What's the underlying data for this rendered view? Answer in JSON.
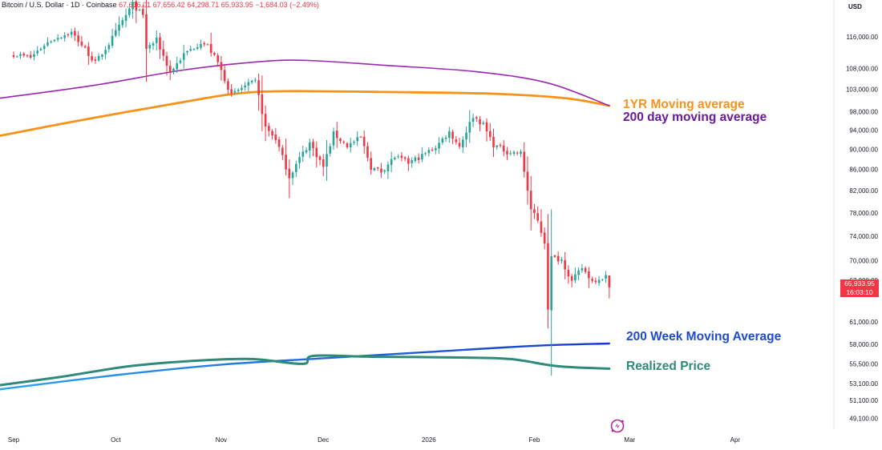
{
  "header": {
    "symbol": "Bitcoin / U.S. Dollar · 1D · Coinbase",
    "open": "67,616.01",
    "high": "67,656.42",
    "low": "64,298.71",
    "close": "65,933.95",
    "change": "−1,684.03 (−2.49%)"
  },
  "currency_label": "USD",
  "last_price": {
    "value": "65,933.95",
    "countdown": "16:03:10"
  },
  "annotations": {
    "ma_1yr": "1YR Moving average",
    "ma_200d": "200 day moving average",
    "ma_200w": "200 Week Moving Average",
    "realized": "Realized Price"
  },
  "colors": {
    "up": "#26a69a",
    "down": "#f23645",
    "ma_1yr": "#f7931a",
    "ma_200d": "#9c27b0",
    "ma_200w": "#1e4bd2",
    "realized": "#2e8b7a",
    "price_tag": "#f23645"
  },
  "icons": {
    "logo": "tradingview-logo-icon"
  },
  "chart_data": {
    "type": "candlestick",
    "y_axis": {
      "scale": "log",
      "ticks": [
        116000,
        108000,
        103000,
        98000,
        94000,
        90000,
        86000,
        82000,
        78000,
        74000,
        70000,
        67000,
        61000,
        58000,
        55500,
        53100,
        51100,
        49100
      ],
      "tick_labels": [
        "116,000.00",
        "108,000.00",
        "103,000.00",
        "98,000.00",
        "94,000.00",
        "90,000.00",
        "86,000.00",
        "82,000.00",
        "78,000.00",
        "74,000.00",
        "70,000.00",
        "67,000.00",
        "61,000.00",
        "58,000.00",
        "55,500.00",
        "53,100.00",
        "51,100.00",
        "49,100.00"
      ],
      "range": [
        47900,
        126000
      ]
    },
    "x_axis": {
      "tick_labels": [
        "Sep",
        "Oct",
        "Nov",
        "Dec",
        "2026",
        "Feb",
        "Mar",
        "Apr"
      ],
      "tick_dates": [
        "2025-09-01",
        "2025-10-01",
        "2025-11-01",
        "2025-12-01",
        "2026-01-01",
        "2026-02-01",
        "2026-03-01",
        "2026-04-01"
      ],
      "range": [
        "2025-08-28",
        "2026-04-30"
      ]
    },
    "anchors": [
      [
        "2025-09-01",
        111500
      ],
      [
        "2025-09-06",
        110700
      ],
      [
        "2025-09-10",
        113900
      ],
      [
        "2025-09-13",
        115600
      ],
      [
        "2025-09-18",
        117100
      ],
      [
        "2025-09-22",
        112800
      ],
      [
        "2025-09-25",
        109300
      ],
      [
        "2025-09-29",
        114200
      ],
      [
        "2025-10-02",
        118600
      ],
      [
        "2025-10-06",
        124800
      ],
      [
        "2025-10-09",
        121500
      ],
      [
        "2025-10-10",
        113000
      ],
      [
        "2025-10-13",
        115100
      ],
      [
        "2025-10-17",
        107000
      ],
      [
        "2025-10-21",
        111400
      ],
      [
        "2025-10-26",
        114600
      ],
      [
        "2025-10-28",
        113600
      ],
      [
        "2025-10-31",
        109400
      ],
      [
        "2025-11-04",
        101600
      ],
      [
        "2025-11-07",
        103400
      ],
      [
        "2025-11-11",
        104800
      ],
      [
        "2025-11-14",
        94500
      ],
      [
        "2025-11-17",
        92200
      ],
      [
        "2025-11-21",
        84600
      ],
      [
        "2025-11-24",
        88200
      ],
      [
        "2025-11-27",
        91300
      ],
      [
        "2025-12-01",
        86500
      ],
      [
        "2025-12-04",
        93200
      ],
      [
        "2025-12-08",
        90700
      ],
      [
        "2025-12-12",
        92400
      ],
      [
        "2025-12-15",
        86400
      ],
      [
        "2025-12-18",
        85600
      ],
      [
        "2025-12-22",
        88500
      ],
      [
        "2025-12-26",
        87300
      ],
      [
        "2025-12-30",
        88700
      ],
      [
        "2026-01-03",
        90500
      ],
      [
        "2026-01-07",
        93600
      ],
      [
        "2026-01-10",
        90600
      ],
      [
        "2026-01-14",
        97000
      ],
      [
        "2026-01-17",
        95100
      ],
      [
        "2026-01-20",
        90900
      ],
      [
        "2026-01-24",
        89500
      ],
      [
        "2026-01-28",
        89200
      ],
      [
        "2026-01-31",
        78600
      ],
      [
        "2026-02-02",
        76500
      ],
      [
        "2026-02-04",
        73000
      ],
      [
        "2026-02-05",
        63000
      ],
      [
        "2026-02-06",
        70500
      ],
      [
        "2026-02-09",
        70200
      ],
      [
        "2026-02-12",
        66800
      ],
      [
        "2026-02-15",
        68900
      ],
      [
        "2026-02-18",
        66900
      ],
      [
        "2026-02-20",
        67300
      ],
      [
        "2026-02-22",
        67616
      ],
      [
        "2026-02-23",
        65934
      ]
    ],
    "series": [
      {
        "name": "1YR Moving average",
        "points": [
          [
            "2025-08-28",
            92800
          ],
          [
            "2025-09-20",
            96000
          ],
          [
            "2025-10-20",
            100000
          ],
          [
            "2025-11-05",
            102000
          ],
          [
            "2025-11-20",
            102600
          ],
          [
            "2025-12-20",
            102400
          ],
          [
            "2026-01-20",
            102000
          ],
          [
            "2026-02-10",
            101000
          ],
          [
            "2026-02-23",
            99300
          ]
        ]
      },
      {
        "name": "200 day moving average",
        "points": [
          [
            "2025-08-28",
            101000
          ],
          [
            "2025-09-25",
            104000
          ],
          [
            "2025-10-20",
            107500
          ],
          [
            "2025-11-10",
            109500
          ],
          [
            "2025-11-25",
            110000
          ],
          [
            "2025-12-20",
            108700
          ],
          [
            "2026-01-15",
            107200
          ],
          [
            "2026-02-05",
            104500
          ],
          [
            "2026-02-23",
            99300
          ]
        ]
      },
      {
        "name": "200 Week Moving Average",
        "points": [
          [
            "2025-08-28",
            52400
          ],
          [
            "2025-10-01",
            54100
          ],
          [
            "2025-11-01",
            55400
          ],
          [
            "2025-12-01",
            56200
          ],
          [
            "2026-01-01",
            57000
          ],
          [
            "2026-02-01",
            57800
          ],
          [
            "2026-02-23",
            58100
          ]
        ]
      },
      {
        "name": "Realized Price",
        "points": [
          [
            "2025-08-28",
            52900
          ],
          [
            "2025-09-15",
            53900
          ],
          [
            "2025-10-05",
            55200
          ],
          [
            "2025-10-25",
            55900
          ],
          [
            "2025-11-10",
            56100
          ],
          [
            "2025-11-25",
            55500
          ],
          [
            "2025-11-28",
            56500
          ],
          [
            "2025-12-15",
            56400
          ],
          [
            "2026-01-10",
            56300
          ],
          [
            "2026-01-25",
            56100
          ],
          [
            "2026-02-08",
            55200
          ],
          [
            "2026-02-23",
            54900
          ]
        ]
      }
    ],
    "last_close": 65933.95,
    "grid": false,
    "legend": "none"
  }
}
